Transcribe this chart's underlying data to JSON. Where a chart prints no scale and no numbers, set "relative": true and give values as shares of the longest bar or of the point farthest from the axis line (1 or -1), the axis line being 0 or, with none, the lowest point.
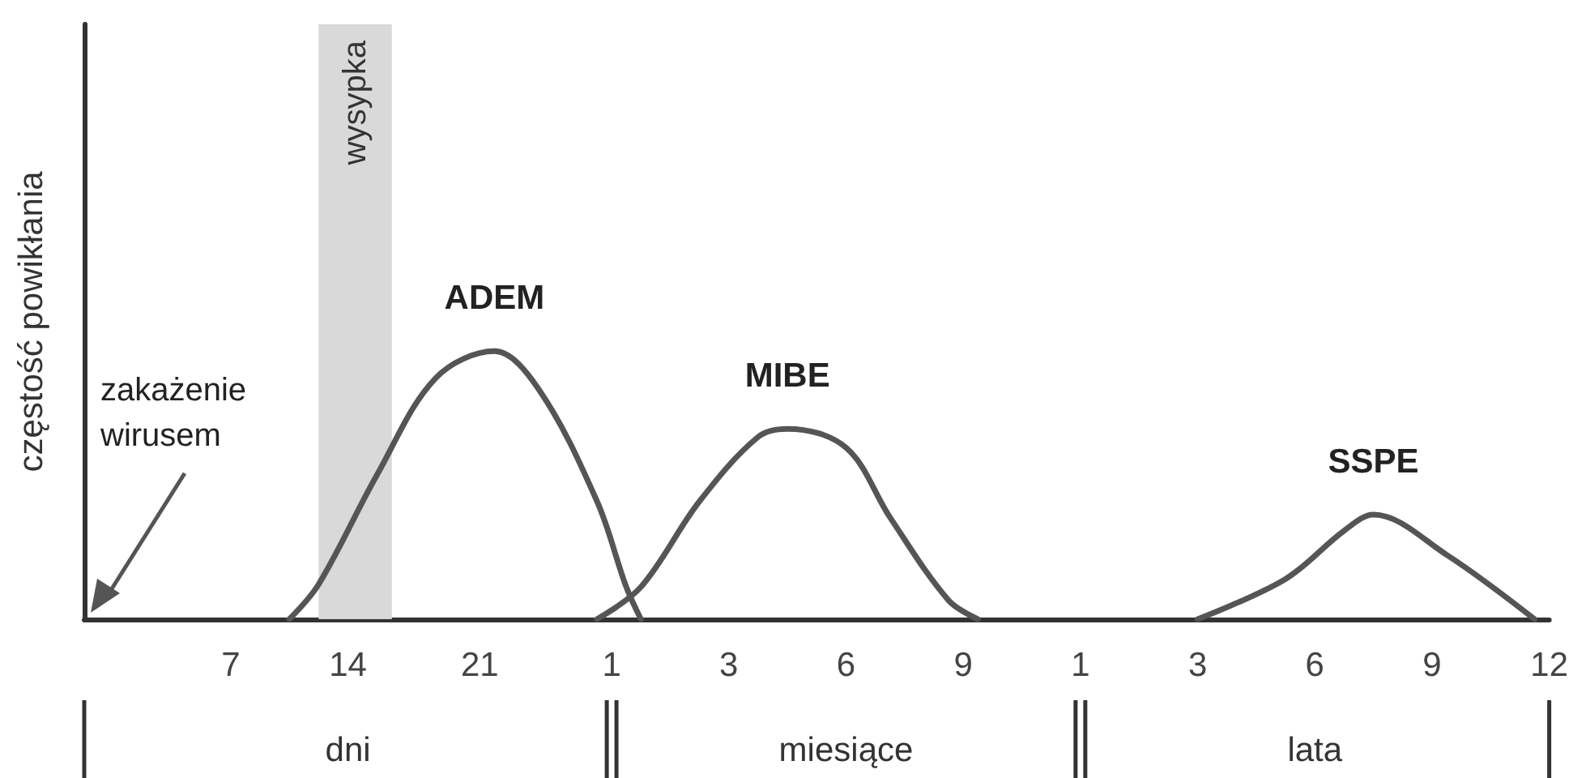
{
  "chart_data": {
    "type": "line",
    "relative": true,
    "ylabel": "częstość powikłania",
    "categories": [
      null,
      null,
      null,
      null,
      null,
      null,
      null,
      null,
      null,
      null,
      "7",
      null,
      null,
      null,
      null,
      null,
      null,
      null,
      "14",
      null,
      null,
      null,
      null,
      null,
      null,
      null,
      null,
      "21",
      null,
      null,
      null,
      null,
      null,
      null,
      null,
      null,
      "1",
      null,
      null,
      null,
      null,
      null,
      null,
      null,
      "3",
      null,
      null,
      null,
      null,
      null,
      null,
      null,
      "6",
      null,
      null,
      null,
      null,
      null,
      null,
      null,
      "9",
      null,
      null,
      null,
      null,
      null,
      null,
      null,
      "1",
      null,
      null,
      null,
      null,
      null,
      null,
      null,
      "3",
      null,
      null,
      null,
      null,
      null,
      null,
      null,
      "6",
      null,
      null,
      null,
      null,
      null,
      null,
      null,
      "9",
      null,
      null,
      null,
      null,
      null,
      null,
      null,
      "12"
    ],
    "series": [
      {
        "name": "ADEM",
        "color": "#555555",
        "values": [
          null,
          null,
          null,
          null,
          null,
          null,
          null,
          null,
          null,
          null,
          null,
          null,
          null,
          null,
          0,
          null,
          0.13,
          null,
          null,
          null,
          0.54,
          null,
          null,
          null,
          0.9,
          null,
          null,
          null,
          1,
          null,
          null,
          0.86,
          null,
          null,
          null,
          0.44,
          null,
          0.12,
          0,
          null,
          null,
          null,
          null,
          null,
          null,
          null,
          null,
          null,
          null,
          null,
          null,
          null,
          null,
          null,
          null,
          null,
          null,
          null,
          null,
          null,
          null,
          null,
          null,
          null,
          null,
          null,
          null,
          null,
          null,
          null,
          null,
          null,
          null,
          null,
          null,
          null,
          null,
          null,
          null,
          null,
          null,
          null,
          null,
          null,
          null,
          null,
          null,
          null,
          null,
          null,
          null,
          null,
          null,
          null,
          null,
          null,
          null,
          null,
          null,
          null,
          null
        ]
      },
      {
        "name": "MIBE",
        "color": "#555555",
        "values": [
          null,
          null,
          null,
          null,
          null,
          null,
          null,
          null,
          null,
          null,
          null,
          null,
          null,
          null,
          null,
          null,
          null,
          null,
          null,
          null,
          null,
          null,
          null,
          null,
          null,
          null,
          null,
          null,
          null,
          null,
          null,
          null,
          null,
          null,
          null,
          0,
          null,
          null,
          0.12,
          null,
          null,
          null,
          0.44,
          null,
          null,
          null,
          0.68,
          null,
          0.71,
          null,
          null,
          null,
          0.64,
          null,
          null,
          0.38,
          null,
          null,
          null,
          0.07,
          null,
          0,
          null,
          null,
          null,
          null,
          null,
          null,
          null,
          null,
          null,
          null,
          null,
          null,
          null,
          null,
          null,
          null,
          null,
          null,
          null,
          null,
          null,
          null,
          null,
          null,
          null,
          null,
          null,
          null,
          null,
          null,
          null,
          null,
          null,
          null,
          null,
          null,
          null,
          null,
          null
        ]
      },
      {
        "name": "SSPE",
        "color": "#555555",
        "values": [
          null,
          null,
          null,
          null,
          null,
          null,
          null,
          null,
          null,
          null,
          null,
          null,
          null,
          null,
          null,
          null,
          null,
          null,
          null,
          null,
          null,
          null,
          null,
          null,
          null,
          null,
          null,
          null,
          null,
          null,
          null,
          null,
          null,
          null,
          null,
          null,
          null,
          null,
          null,
          null,
          null,
          null,
          null,
          null,
          null,
          null,
          null,
          null,
          null,
          null,
          null,
          null,
          null,
          null,
          null,
          null,
          null,
          null,
          null,
          null,
          null,
          null,
          null,
          null,
          null,
          null,
          null,
          null,
          null,
          null,
          null,
          null,
          null,
          null,
          null,
          null,
          0,
          null,
          null,
          null,
          null,
          null,
          0.15,
          null,
          null,
          null,
          0.33,
          null,
          0.39,
          null,
          null,
          null,
          null,
          0.24,
          null,
          null,
          null,
          null,
          null,
          0,
          null
        ]
      }
    ],
    "annotations": [
      "zakażenie wirusem",
      "wysypka",
      "dni",
      "miesiące",
      "lata"
    ],
    "grid": false,
    "legend": false,
    "marker": "none",
    "line_style": "solid"
  }
}
